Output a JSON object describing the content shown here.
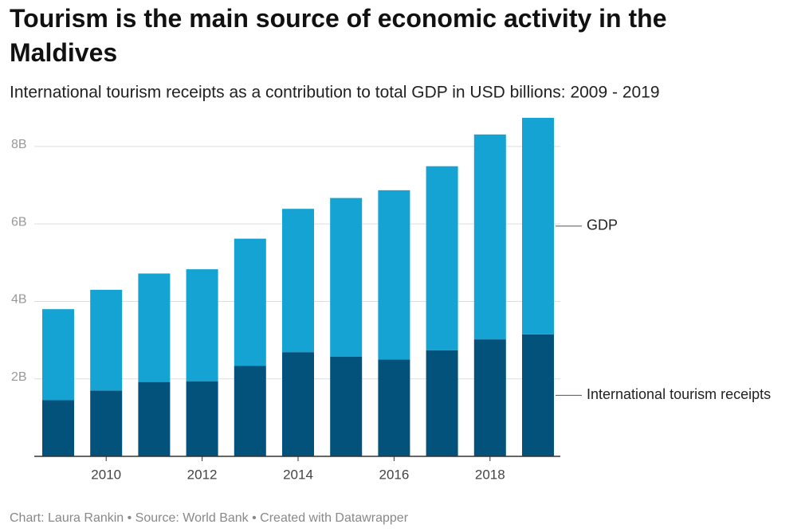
{
  "chart_data": {
    "type": "stacked_bar",
    "title": "Tourism is the main source of economic activity in the Maldives",
    "subtitle": "International tourism receipts as a contribution to total GDP in USD billions: 2009 - 2019",
    "source": "Chart: Laura Rankin • Source: World Bank • Created with Datawrapper",
    "categories": [
      null,
      "2010",
      null,
      "2012",
      null,
      "2014",
      null,
      "2016",
      null,
      "2018",
      null
    ],
    "series": [
      {
        "name": "International tourism receipts",
        "color": "#03527b",
        "values": [
          1.45,
          1.7,
          1.92,
          1.94,
          2.34,
          2.69,
          2.57,
          2.5,
          2.74,
          3.02,
          3.15
        ]
      },
      {
        "name": "GDP",
        "color": "#14a3d3",
        "values": [
          2.35,
          2.6,
          2.8,
          2.89,
          3.28,
          3.7,
          4.1,
          4.37,
          4.75,
          5.29,
          5.59
        ]
      }
    ],
    "ylim": [
      0,
      8.8
    ],
    "yticks": [
      {
        "value": 2,
        "label": "2B"
      },
      {
        "value": 4,
        "label": "4B"
      },
      {
        "value": 6,
        "label": "6B"
      },
      {
        "value": 8,
        "label": "8B"
      }
    ],
    "grid": true
  }
}
